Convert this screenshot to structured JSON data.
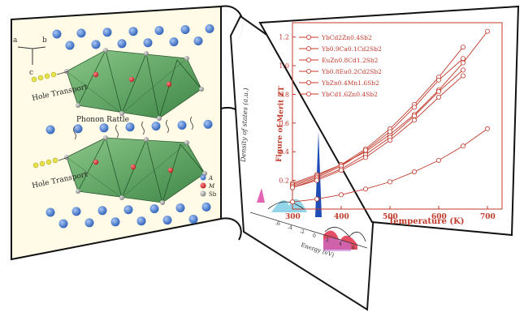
{
  "left_panel": {
    "axes": {
      "a": "a",
      "b": "b",
      "c": "c"
    },
    "labels": {
      "hole_transport_top": "Hole Transport",
      "phonon_rattle": "Phonon Rattle",
      "hole_transport_bottom": "Hole Transport"
    },
    "legend": [
      {
        "symbol": "A",
        "color": "#3b6fc4"
      },
      {
        "symbol": "M",
        "color": "#d42323"
      },
      {
        "symbol": "Sb",
        "color": "#9a9a9a"
      }
    ]
  },
  "middle_panel": {
    "ylabel": "Density of states (a.u.)",
    "xlabel": "Energy (eV)",
    "x_ticks": [
      "-6",
      "-4",
      "-2",
      "0",
      "2",
      "4",
      "6"
    ]
  },
  "right_panel": {
    "ylabel": "Figure of Merit ZT",
    "xlabel": "Temperature (K)"
  },
  "chart_data": {
    "type": "line",
    "xlabel": "Temperature (K)",
    "ylabel": "Figure of Merit ZT",
    "xlim": [
      300,
      730
    ],
    "ylim": [
      0,
      1.3
    ],
    "x_ticks": [
      "300",
      "400",
      "500",
      "600",
      "700"
    ],
    "y_ticks": [
      "0.2",
      "0.4",
      "0.6",
      "0.8",
      "1.0",
      "1.2"
    ],
    "legend_placement": "top-left",
    "series_color": "#c0392b",
    "series": [
      {
        "name": "YbCd2Zn0.4Sb2",
        "x": [
          300,
          350,
          400,
          450,
          500,
          550,
          600,
          650,
          700
        ],
        "y": [
          0.18,
          0.24,
          0.31,
          0.4,
          0.52,
          0.66,
          0.83,
          1.02,
          1.24
        ]
      },
      {
        "name": "Yb0.9Ca0.1Cd2Sb2",
        "x": [
          300,
          350,
          400,
          450,
          500,
          550,
          600,
          650
        ],
        "y": [
          0.17,
          0.23,
          0.31,
          0.42,
          0.56,
          0.73,
          0.92,
          1.13
        ]
      },
      {
        "name": "EuZn0.8Cd1.2Sb2",
        "x": [
          300,
          350,
          400,
          450,
          500,
          550,
          600,
          650
        ],
        "y": [
          0.16,
          0.22,
          0.3,
          0.41,
          0.54,
          0.71,
          0.9,
          1.05
        ]
      },
      {
        "name": "Yb0.8Eu0.2Cd2Sb2",
        "x": [
          300,
          350,
          400,
          450,
          500,
          550,
          600,
          650
        ],
        "y": [
          0.15,
          0.21,
          0.28,
          0.38,
          0.5,
          0.65,
          0.82,
          0.97
        ]
      },
      {
        "name": "YbZn0.4Mn1.6Sb2",
        "x": [
          300,
          350,
          400,
          450,
          500,
          550,
          600,
          650
        ],
        "y": [
          0.15,
          0.2,
          0.27,
          0.36,
          0.48,
          0.62,
          0.78,
          0.93
        ]
      },
      {
        "name": "YbCd1.6Zn0.4Sb2",
        "x": [
          300,
          350,
          400,
          450,
          500,
          550,
          600,
          650,
          700
        ],
        "y": [
          0.05,
          0.07,
          0.1,
          0.14,
          0.19,
          0.26,
          0.34,
          0.44,
          0.56
        ]
      }
    ]
  }
}
